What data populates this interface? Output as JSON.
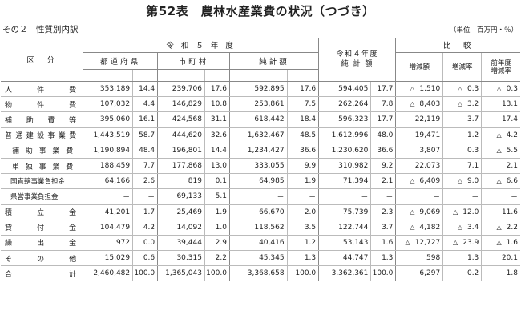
{
  "title": "第52表　農林水産業費の状況（つづき）",
  "subtitle": "その２　性質別内訳",
  "unit": "（単位　百万円・％）",
  "headers": {
    "kubun": "区　分",
    "r5": "令 和 ５ 年 度",
    "r4_line1": "令和４年度",
    "r4_line2": "純 計 額",
    "hikaku": "比　較",
    "todofuken": "都道府県",
    "shichoson": "市町村",
    "junkei": "純計額",
    "zogengaku": "増減額",
    "zogenritsu": "増減率",
    "zennendo_line1": "前年度",
    "zennendo_line2": "増減率"
  },
  "rows": [
    {
      "label": "人件費",
      "level": 0,
      "pref": "353,189",
      "pref_pct": "14.4",
      "muni": "239,706",
      "muni_pct": "17.6",
      "net": "592,895",
      "net_pct": "17.6",
      "prev": "594,405",
      "prev_pct": "17.7",
      "diff_tri": "△",
      "diff": "1,510",
      "rate_tri": "△",
      "rate": "0.3",
      "prate_tri": "△",
      "prate": "0.3"
    },
    {
      "label": "物件費",
      "level": 0,
      "pref": "107,032",
      "pref_pct": "4.4",
      "muni": "146,829",
      "muni_pct": "10.8",
      "net": "253,861",
      "net_pct": "7.5",
      "prev": "262,264",
      "prev_pct": "7.8",
      "diff_tri": "△",
      "diff": "8,403",
      "rate_tri": "△",
      "rate": "3.2",
      "prate_tri": "",
      "prate": "13.1"
    },
    {
      "label": "補助費等",
      "level": 0,
      "pref": "395,060",
      "pref_pct": "16.1",
      "muni": "424,568",
      "muni_pct": "31.1",
      "net": "618,442",
      "net_pct": "18.4",
      "prev": "596,323",
      "prev_pct": "17.7",
      "diff_tri": "",
      "diff": "22,119",
      "rate_tri": "",
      "rate": "3.7",
      "prate_tri": "",
      "prate": "17.4"
    },
    {
      "label": "普通建設事業費",
      "level": 0,
      "pref": "1,443,519",
      "pref_pct": "58.7",
      "muni": "444,620",
      "muni_pct": "32.6",
      "net": "1,632,467",
      "net_pct": "48.5",
      "prev": "1,612,996",
      "prev_pct": "48.0",
      "diff_tri": "",
      "diff": "19,471",
      "rate_tri": "",
      "rate": "1.2",
      "prate_tri": "△",
      "prate": "4.2"
    },
    {
      "label": "補助事業費",
      "level": 1,
      "pref": "1,190,894",
      "pref_pct": "48.4",
      "muni": "196,801",
      "muni_pct": "14.4",
      "net": "1,234,427",
      "net_pct": "36.6",
      "prev": "1,230,620",
      "prev_pct": "36.6",
      "diff_tri": "",
      "diff": "3,807",
      "rate_tri": "",
      "rate": "0.3",
      "prate_tri": "△",
      "prate": "5.5"
    },
    {
      "label": "単独事業費",
      "level": 1,
      "pref": "188,459",
      "pref_pct": "7.7",
      "muni": "177,868",
      "muni_pct": "13.0",
      "net": "333,055",
      "net_pct": "9.9",
      "prev": "310,982",
      "prev_pct": "9.2",
      "diff_tri": "",
      "diff": "22,073",
      "rate_tri": "",
      "rate": "7.1",
      "prate_tri": "",
      "prate": "2.1"
    },
    {
      "label": "国直轄事業負担金",
      "level": 2,
      "pref": "64,166",
      "pref_pct": "2.6",
      "muni": "819",
      "muni_pct": "0.1",
      "net": "64,985",
      "net_pct": "1.9",
      "prev": "71,394",
      "prev_pct": "2.1",
      "diff_tri": "△",
      "diff": "6,409",
      "rate_tri": "△",
      "rate": "9.0",
      "prate_tri": "△",
      "prate": "6.6"
    },
    {
      "label": "県営事業負担金",
      "level": 2,
      "pref": "－",
      "pref_pct": "－",
      "muni": "69,133",
      "muni_pct": "5.1",
      "net": "－",
      "net_pct": "－",
      "prev": "－",
      "prev_pct": "－",
      "diff_tri": "",
      "diff": "－",
      "rate_tri": "",
      "rate": "－",
      "prate_tri": "",
      "prate": "－"
    },
    {
      "label": "積立金",
      "level": 0,
      "pref": "41,201",
      "pref_pct": "1.7",
      "muni": "25,469",
      "muni_pct": "1.9",
      "net": "66,670",
      "net_pct": "2.0",
      "prev": "75,739",
      "prev_pct": "2.3",
      "diff_tri": "△",
      "diff": "9,069",
      "rate_tri": "△",
      "rate": "12.0",
      "prate_tri": "",
      "prate": "11.6"
    },
    {
      "label": "貸付金",
      "level": 0,
      "pref": "104,479",
      "pref_pct": "4.2",
      "muni": "14,092",
      "muni_pct": "1.0",
      "net": "118,562",
      "net_pct": "3.5",
      "prev": "122,744",
      "prev_pct": "3.7",
      "diff_tri": "△",
      "diff": "4,182",
      "rate_tri": "△",
      "rate": "3.4",
      "prate_tri": "△",
      "prate": "2.2"
    },
    {
      "label": "繰出金",
      "level": 0,
      "pref": "972",
      "pref_pct": "0.0",
      "muni": "39,444",
      "muni_pct": "2.9",
      "net": "40,416",
      "net_pct": "1.2",
      "prev": "53,143",
      "prev_pct": "1.6",
      "diff_tri": "△",
      "diff": "12,727",
      "rate_tri": "△",
      "rate": "23.9",
      "prate_tri": "△",
      "prate": "1.6"
    },
    {
      "label": "その他",
      "level": 0,
      "pref": "15,029",
      "pref_pct": "0.6",
      "muni": "30,315",
      "muni_pct": "2.2",
      "net": "45,345",
      "net_pct": "1.3",
      "prev": "44,747",
      "prev_pct": "1.3",
      "diff_tri": "",
      "diff": "598",
      "rate_tri": "",
      "rate": "1.3",
      "prate_tri": "",
      "prate": "20.1"
    },
    {
      "label": "合計",
      "level": 3,
      "pref": "2,460,482",
      "pref_pct": "100.0",
      "muni": "1,365,043",
      "muni_pct": "100.0",
      "net": "3,368,658",
      "net_pct": "100.0",
      "prev": "3,362,361",
      "prev_pct": "100.0",
      "diff_tri": "",
      "diff": "6,297",
      "rate_tri": "",
      "rate": "0.2",
      "prate_tri": "",
      "prate": "1.8"
    }
  ]
}
